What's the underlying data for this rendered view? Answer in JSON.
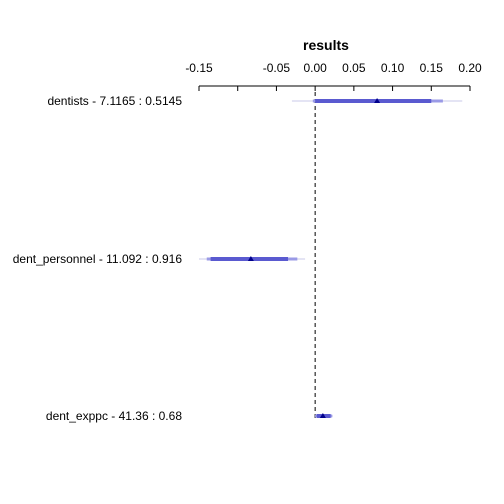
{
  "chart_data": {
    "type": "interval",
    "title": "results",
    "x_ticks": [
      -0.15,
      -0.05,
      0.0,
      0.05,
      0.1,
      0.15,
      0.2
    ],
    "x_tick_labels": [
      "-0.15",
      "-0.05",
      "0.00",
      "0.05",
      "0.10",
      "0.15",
      "0.20"
    ],
    "x_minor_ticks": [
      -0.1
    ],
    "xlim": [
      -0.15,
      0.2
    ],
    "reference_line": 0.0,
    "rows": [
      {
        "label": "dentists - 7.1165 : 0.5145",
        "estimate": 0.08,
        "inner": [
          0.0,
          0.15
        ],
        "middle": [
          -0.003,
          0.165
        ],
        "outer": [
          -0.03,
          0.19
        ]
      },
      {
        "label": "dent_personnel - 11.092 : 0.916",
        "estimate": -0.083,
        "inner": [
          -0.135,
          -0.035
        ],
        "middle": [
          -0.14,
          -0.023
        ],
        "outer": [
          -0.15,
          -0.013
        ]
      },
      {
        "label": "dent_exppc - 41.36 : 0.68",
        "estimate": 0.01,
        "inner": [
          0.002,
          0.02
        ],
        "middle": [
          0.0,
          0.022
        ],
        "outer": [
          0.0,
          0.023
        ]
      }
    ],
    "colors": {
      "inner": "#5a5ad0",
      "middle": "#9a9ae6",
      "outer": "#dcdcf0",
      "estimate": "#00008b",
      "reference": "#000000"
    }
  }
}
